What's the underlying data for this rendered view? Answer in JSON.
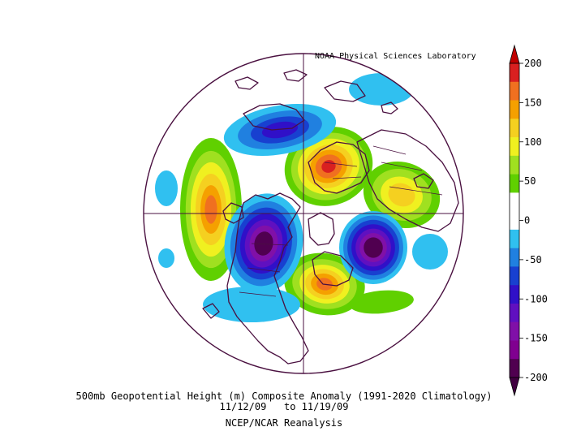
{
  "credit": "NOAA Physical Sciences Laboratory",
  "caption": {
    "title": "500mb Geopotential Height (m) Composite Anomaly (1991-2020 Climatology)",
    "dates": "11/12/09   to 11/19/09",
    "source": "NCEP/NCAR Reanalysis"
  },
  "colorbar": {
    "ticks": [
      "200",
      "150",
      "100",
      "50",
      "0",
      "-50",
      "-100",
      "-150",
      "-200"
    ],
    "colors": [
      "#d92020",
      "#f07020",
      "#f5a000",
      "#f5d020",
      "#f0f020",
      "#a0e020",
      "#60d000",
      "#ffffff",
      "#ffffff",
      "#30c0f0",
      "#2080e0",
      "#1840d0",
      "#3010c8",
      "#6010c0",
      "#8010a8",
      "#800090",
      "#500050"
    ],
    "top_arrow_color": "#c00000",
    "bottom_arrow_color": "#400040"
  },
  "map": {
    "projection": "north polar stereographic",
    "coast_color": "#4a1040",
    "anomaly_centers": [
      {
        "region": "Pacific ridge",
        "sign": "positive",
        "peak": 150
      },
      {
        "region": "Siberia",
        "sign": "positive",
        "peak": 150
      },
      {
        "region": "East Asia",
        "sign": "positive",
        "peak": 100
      },
      {
        "region": "Europe/Atlantic",
        "sign": "positive",
        "peak": 150
      },
      {
        "region": "Alaska/Arctic",
        "sign": "negative",
        "peak": -200
      },
      {
        "region": "Western North America",
        "sign": "negative",
        "peak": -150
      },
      {
        "region": "Western Atlantic",
        "sign": "negative",
        "peak": -100
      }
    ]
  }
}
